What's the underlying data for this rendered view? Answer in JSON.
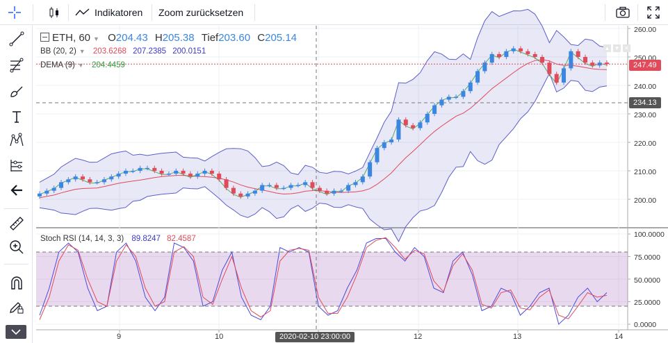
{
  "toolbar_top": {
    "indicators_label": "Indikatoren",
    "reset_zoom_label": "Zoom zurücksetzen"
  },
  "legend": {
    "symbol": "ETH, 60",
    "open_label": "O",
    "open": "204.43",
    "high_label": "H",
    "high": "205.38",
    "low_label": "Tief",
    "low": "203.60",
    "close_label": "C",
    "close": "205.14",
    "bb_label": "BB (20, 2)",
    "bb_upper": "203.6268",
    "bb_mid": "207.2385",
    "bb_lower": "200.0151",
    "dema_label": "DEMA (9)",
    "dema": "204.4459",
    "rsi_label": "Stoch RSI (14, 14, 3, 3)",
    "rsi_k": "89.8247",
    "rsi_d": "82.4587"
  },
  "price_axis": [
    "260.00",
    "250.00",
    "240.00",
    "230.00",
    "220.00",
    "210.00",
    "200.00"
  ],
  "price_tags": {
    "last": "247.49",
    "crosshair": "234.13"
  },
  "rsi_axis": [
    "100.0000",
    "75.0000",
    "50.0000",
    "25.0000",
    "0.0000"
  ],
  "time_axis": [
    "9",
    "10",
    "12",
    "13",
    "14"
  ],
  "crosshair_time": "2020-02-10 23:00:00",
  "colors": {
    "up": "#3a86e0",
    "down": "#e04a5a",
    "band": "#5b5fc7",
    "dema": "#2e9e3e",
    "rsi_k": "#4b4bd8",
    "rsi_d": "#e04a5a"
  },
  "chart_data": {
    "type": "candlestick",
    "close_series": [
      202,
      203,
      204,
      206,
      207,
      208,
      207,
      206,
      206,
      207,
      208,
      209,
      210,
      210,
      211,
      211,
      210,
      209,
      209,
      210,
      209,
      208,
      209,
      210,
      209,
      207,
      204,
      202,
      201,
      202,
      203,
      205,
      205,
      204,
      204,
      205,
      205,
      206,
      204,
      203,
      202,
      203,
      203,
      205,
      206,
      208,
      213,
      218,
      220,
      221,
      228,
      226,
      225,
      227,
      230,
      233,
      235,
      236,
      236,
      238,
      241,
      245,
      248,
      251,
      250,
      252,
      253,
      252,
      251,
      250,
      248,
      244,
      241,
      246,
      252,
      250,
      248,
      247,
      248,
      247.5
    ],
    "rsi_k": [
      10,
      40,
      80,
      90,
      80,
      40,
      15,
      20,
      80,
      90,
      70,
      30,
      15,
      30,
      90,
      85,
      70,
      20,
      25,
      60,
      80,
      30,
      10,
      5,
      20,
      85,
      80,
      85,
      80,
      20,
      10,
      15,
      40,
      60,
      90,
      95,
      95,
      80,
      70,
      85,
      75,
      40,
      35,
      70,
      80,
      55,
      15,
      20,
      40,
      35,
      10,
      20,
      35,
      40,
      0,
      10,
      30,
      40,
      25,
      35
    ],
    "rsi_d": [
      5,
      30,
      70,
      88,
      82,
      50,
      25,
      20,
      70,
      88,
      75,
      40,
      20,
      25,
      80,
      86,
      75,
      30,
      22,
      50,
      75,
      40,
      15,
      8,
      15,
      70,
      82,
      84,
      82,
      30,
      12,
      12,
      30,
      55,
      85,
      93,
      96,
      85,
      72,
      82,
      78,
      48,
      36,
      65,
      78,
      60,
      22,
      18,
      35,
      38,
      18,
      16,
      30,
      38,
      10,
      6,
      20,
      35,
      30,
      32
    ]
  }
}
